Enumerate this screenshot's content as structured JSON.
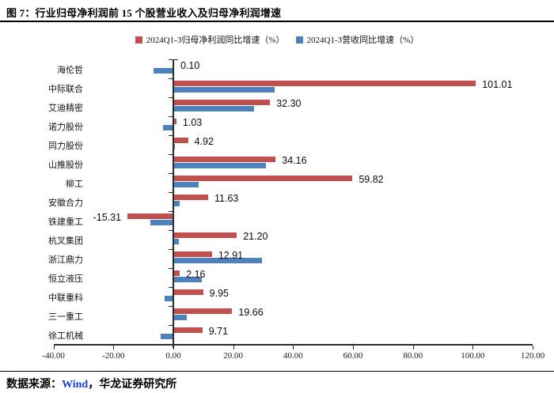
{
  "title": "图 7：行业归母净利润前 15 个股营业收入及归母净利润增速",
  "legend": {
    "items": [
      {
        "label": "2024Q1-3归母净利润同比增速（%）",
        "color": "#C0504D"
      },
      {
        "label": "2024Q1-3营收同比增速（%）",
        "color": "#4F81BD"
      }
    ]
  },
  "footer": {
    "prefix": "数据来源：",
    "source": "Wind",
    "suffix": "，华龙证券研究所"
  },
  "chart_data": {
    "type": "bar",
    "orientation": "horizontal",
    "title": "行业归母净利润前15个股营业收入及归母净利润增速",
    "categories": [
      "海伦哲",
      "中际联合",
      "艾迪精密",
      "诺力股份",
      "同力股份",
      "山推股份",
      "柳工",
      "安徽合力",
      "铁建重工",
      "杭叉集团",
      "浙江鼎力",
      "恒立液压",
      "中联重科",
      "三一重工",
      "徐工机械"
    ],
    "series": [
      {
        "name": "2024Q1-3归母净利润同比增速（%）",
        "color": "#C0504D",
        "values": [
          0.1,
          101.01,
          32.3,
          1.03,
          4.92,
          34.16,
          59.82,
          11.63,
          -15.31,
          21.2,
          12.91,
          2.16,
          9.95,
          19.66,
          9.71
        ],
        "data_labels": [
          "0.10",
          "101.01",
          "32.30",
          "1.03",
          "4.92",
          "34.16",
          "59.82",
          "11.63",
          "-15.31",
          "21.20",
          "12.91",
          "2.16",
          "9.95",
          "19.66",
          "9.71"
        ]
      },
      {
        "name": "2024Q1-3营收同比增速（%）",
        "color": "#4F81BD",
        "values": [
          -6.5,
          33.9,
          26.9,
          -3.4,
          0.4,
          30.9,
          8.5,
          2.2,
          -7.7,
          1.8,
          29.6,
          9.5,
          -2.8,
          4.5,
          -4.1
        ]
      }
    ],
    "xlim": [
      -40,
      120
    ],
    "xticks": [
      -40,
      -20,
      0,
      20,
      40,
      60,
      80,
      100,
      120
    ],
    "xtick_labels": [
      "-40.00",
      "-20.00",
      "0.00",
      "20.00",
      "40.00",
      "60.00",
      "80.00",
      "100.00",
      "120.00"
    ],
    "grid": false,
    "legend_position": "top-center",
    "value_labels_on": "series-0-only"
  }
}
